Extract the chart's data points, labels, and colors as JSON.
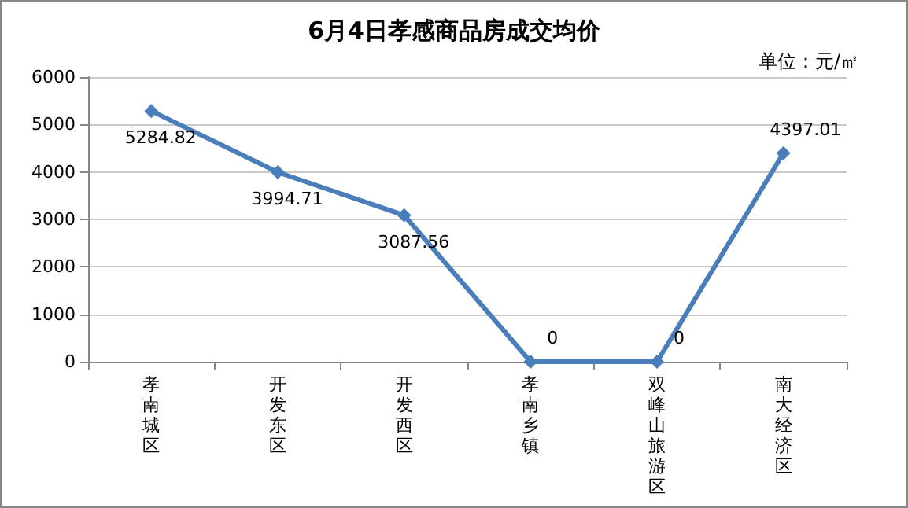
{
  "chart_data": {
    "type": "line",
    "title": "6月4日孝感商品房成交均价",
    "annotations": [
      "单位：元/㎡"
    ],
    "categories": [
      "孝南城区",
      "开发东区",
      "开发西区",
      "孝南乡镇",
      "双峰山旅游区",
      "南大经济区"
    ],
    "series": [
      {
        "color": "#4a7ebb",
        "values": [
          5284.82,
          3994.71,
          3087.56,
          0,
          0,
          4397.01
        ]
      }
    ],
    "ylim": [
      0,
      6000
    ],
    "yticks": [
      0,
      1000,
      2000,
      3000,
      4000,
      5000,
      6000
    ],
    "grid": "y",
    "marker": "diamond",
    "line_style": "solid",
    "data_labels": true
  }
}
